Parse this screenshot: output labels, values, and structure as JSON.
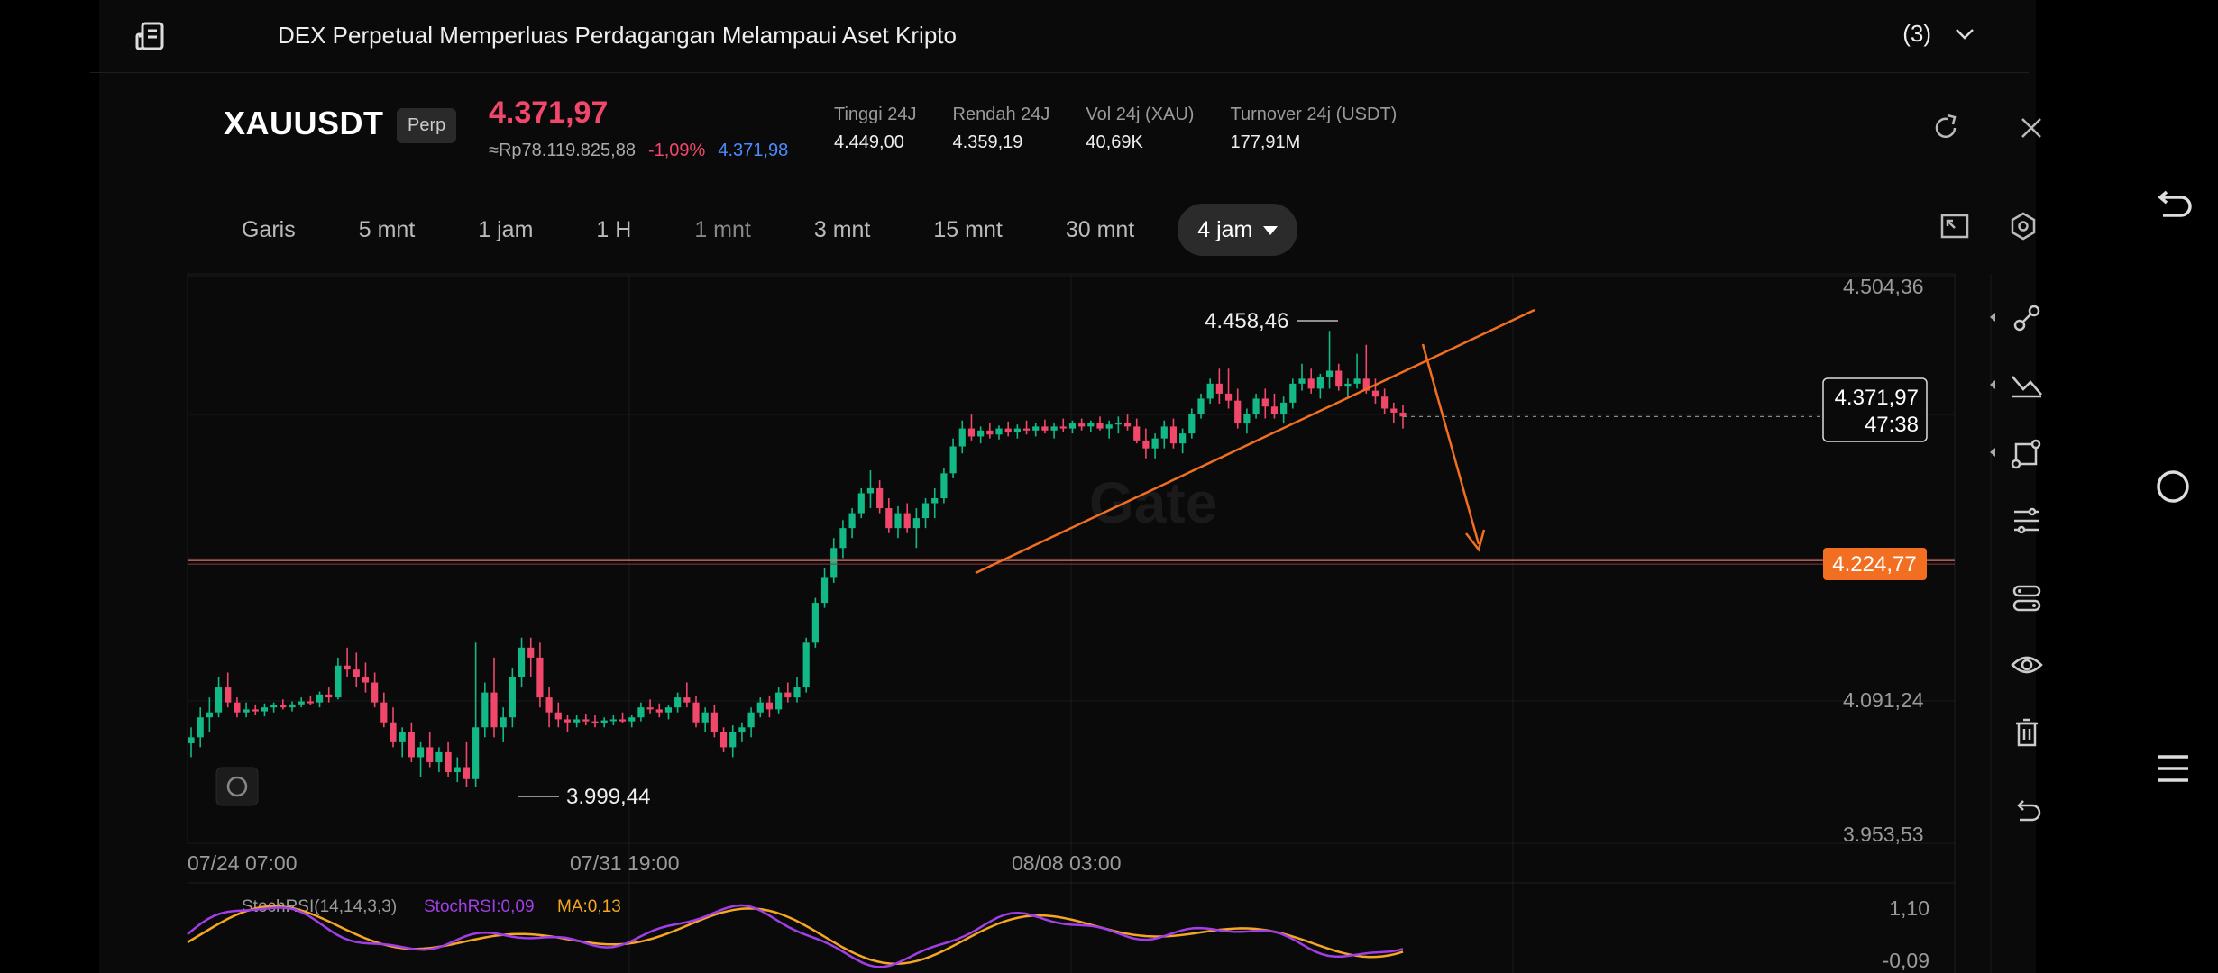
{
  "news": {
    "text": "DEX Perpetual Memperluas Perdagangan Melampaui Aset Kripto",
    "count": "(3)"
  },
  "header": {
    "symbol": "XAUUSDT",
    "badge": "Perp",
    "price": "4.371,97",
    "fiat": "≈Rp78.119.825,88",
    "change": "-1,09%",
    "mark_price": "4.371,98",
    "stats": [
      {
        "label": "Tinggi 24J",
        "value": "4.449,00"
      },
      {
        "label": "Rendah 24J",
        "value": "4.359,19"
      },
      {
        "label": "Vol 24j (XAU)",
        "value": "40,69K"
      },
      {
        "label": "Turnover 24j (USDT)",
        "value": "177,91M"
      }
    ]
  },
  "tabs": [
    "Garis",
    "5 mnt",
    "1 jam",
    "1 H",
    "1 mnt",
    "3 mnt",
    "15 mnt",
    "30 mnt",
    "4 jam"
  ],
  "active_tab": "4 jam",
  "chart_data": {
    "type": "candlestick",
    "y_ticks": [
      "4.504,36",
      "4.091,24",
      "3.953,53"
    ],
    "x_ticks": [
      "07/24 07:00",
      "07/31 19:00",
      "08/08 03:00"
    ],
    "ylim": [
      3953.53,
      4504.36
    ],
    "high_annotation": "4.458,46",
    "low_annotation": "3.999,44",
    "current_price_label": "4.371,97",
    "countdown": "47:38",
    "line_level_label": "4.224,77",
    "line_level": 4224.77,
    "watermark": "Gate",
    "candles": [
      [
        4044,
        4060,
        4030,
        4050
      ],
      [
        4050,
        4080,
        4040,
        4070
      ],
      [
        4070,
        4090,
        4055,
        4075
      ],
      [
        4075,
        4110,
        4070,
        4100
      ],
      [
        4100,
        4115,
        4080,
        4085
      ],
      [
        4085,
        4090,
        4070,
        4075
      ],
      [
        4075,
        4085,
        4070,
        4078
      ],
      [
        4078,
        4083,
        4072,
        4076
      ],
      [
        4076,
        4084,
        4071,
        4080
      ],
      [
        4080,
        4085,
        4075,
        4082
      ],
      [
        4082,
        4088,
        4078,
        4080
      ],
      [
        4080,
        4086,
        4076,
        4083
      ],
      [
        4083,
        4090,
        4080,
        4086
      ],
      [
        4086,
        4092,
        4082,
        4085
      ],
      [
        4085,
        4096,
        4080,
        4093
      ],
      [
        4093,
        4100,
        4085,
        4090
      ],
      [
        4090,
        4130,
        4088,
        4122
      ],
      [
        4122,
        4140,
        4110,
        4118
      ],
      [
        4118,
        4135,
        4100,
        4110
      ],
      [
        4110,
        4125,
        4095,
        4105
      ],
      [
        4105,
        4115,
        4080,
        4085
      ],
      [
        4085,
        4095,
        4060,
        4065
      ],
      [
        4065,
        4080,
        4040,
        4045
      ],
      [
        4045,
        4060,
        4030,
        4055
      ],
      [
        4055,
        4065,
        4025,
        4030
      ],
      [
        4030,
        4045,
        4010,
        4040
      ],
      [
        4040,
        4055,
        4020,
        4025
      ],
      [
        4025,
        4040,
        4015,
        4035
      ],
      [
        4035,
        4045,
        4010,
        4015
      ],
      [
        4015,
        4030,
        4005,
        4020
      ],
      [
        4020,
        4045,
        4000,
        4008
      ],
      [
        4008,
        4145,
        4000,
        4060
      ],
      [
        4060,
        4105,
        4050,
        4095
      ],
      [
        4095,
        4130,
        4050,
        4060
      ],
      [
        4060,
        4080,
        4045,
        4070
      ],
      [
        4070,
        4120,
        4060,
        4110
      ],
      [
        4110,
        4150,
        4100,
        4140
      ],
      [
        4140,
        4150,
        4110,
        4130
      ],
      [
        4130,
        4145,
        4080,
        4090
      ],
      [
        4090,
        4100,
        4060,
        4075
      ],
      [
        4075,
        4085,
        4060,
        4068
      ],
      [
        4068,
        4072,
        4055,
        4065
      ],
      [
        4065,
        4072,
        4060,
        4068
      ],
      [
        4068,
        4073,
        4062,
        4066
      ],
      [
        4066,
        4072,
        4060,
        4064
      ],
      [
        4064,
        4070,
        4060,
        4067
      ],
      [
        4067,
        4072,
        4062,
        4068
      ],
      [
        4068,
        4075,
        4064,
        4066
      ],
      [
        4066,
        4072,
        4060,
        4070
      ],
      [
        4070,
        4085,
        4066,
        4080
      ],
      [
        4080,
        4088,
        4074,
        4078
      ],
      [
        4078,
        4084,
        4070,
        4075
      ],
      [
        4075,
        4082,
        4068,
        4080
      ],
      [
        4080,
        4095,
        4075,
        4090
      ],
      [
        4090,
        4105,
        4080,
        4085
      ],
      [
        4085,
        4092,
        4060,
        4065
      ],
      [
        4065,
        4080,
        4055,
        4075
      ],
      [
        4075,
        4082,
        4050,
        4055
      ],
      [
        4055,
        4060,
        4035,
        4040
      ],
      [
        4040,
        4062,
        4030,
        4055
      ],
      [
        4055,
        4065,
        4045,
        4060
      ],
      [
        4060,
        4080,
        4050,
        4075
      ],
      [
        4075,
        4090,
        4070,
        4085
      ],
      [
        4085,
        4092,
        4070,
        4078
      ],
      [
        4078,
        4100,
        4074,
        4095
      ],
      [
        4095,
        4105,
        4085,
        4090
      ],
      [
        4090,
        4110,
        4085,
        4100
      ],
      [
        4100,
        4150,
        4095,
        4145
      ],
      [
        4145,
        4190,
        4140,
        4185
      ],
      [
        4185,
        4220,
        4180,
        4210
      ],
      [
        4210,
        4250,
        4205,
        4240
      ],
      [
        4240,
        4268,
        4230,
        4260
      ],
      [
        4260,
        4280,
        4250,
        4275
      ],
      [
        4275,
        4300,
        4270,
        4295
      ],
      [
        4295,
        4318,
        4280,
        4300
      ],
      [
        4300,
        4308,
        4275,
        4280
      ],
      [
        4280,
        4290,
        4255,
        4260
      ],
      [
        4260,
        4282,
        4250,
        4275
      ],
      [
        4275,
        4285,
        4255,
        4260
      ],
      [
        4260,
        4280,
        4240,
        4270
      ],
      [
        4270,
        4290,
        4260,
        4285
      ],
      [
        4285,
        4300,
        4270,
        4290
      ],
      [
        4290,
        4320,
        4285,
        4315
      ],
      [
        4315,
        4350,
        4310,
        4342
      ],
      [
        4342,
        4368,
        4335,
        4360
      ],
      [
        4360,
        4374,
        4348,
        4352
      ],
      [
        4352,
        4362,
        4345,
        4358
      ],
      [
        4358,
        4366,
        4350,
        4354
      ],
      [
        4354,
        4363,
        4349,
        4360
      ],
      [
        4360,
        4367,
        4352,
        4356
      ],
      [
        4356,
        4364,
        4350,
        4360
      ],
      [
        4360,
        4368,
        4354,
        4358
      ],
      [
        4358,
        4366,
        4352,
        4362
      ],
      [
        4362,
        4369,
        4355,
        4358
      ],
      [
        4358,
        4365,
        4350,
        4362
      ],
      [
        4362,
        4370,
        4356,
        4360
      ],
      [
        4360,
        4368,
        4355,
        4365
      ],
      [
        4365,
        4370,
        4358,
        4362
      ],
      [
        4362,
        4368,
        4356,
        4366
      ],
      [
        4366,
        4372,
        4358,
        4360
      ],
      [
        4360,
        4368,
        4350,
        4364
      ],
      [
        4364,
        4372,
        4355,
        4366
      ],
      [
        4366,
        4374,
        4358,
        4362
      ],
      [
        4362,
        4370,
        4345,
        4348
      ],
      [
        4348,
        4360,
        4330,
        4340
      ],
      [
        4340,
        4355,
        4330,
        4350
      ],
      [
        4350,
        4368,
        4340,
        4362
      ],
      [
        4362,
        4370,
        4340,
        4345
      ],
      [
        4345,
        4360,
        4335,
        4355
      ],
      [
        4355,
        4380,
        4350,
        4375
      ],
      [
        4375,
        4395,
        4370,
        4390
      ],
      [
        4390,
        4410,
        4385,
        4405
      ],
      [
        4405,
        4420,
        4385,
        4395
      ],
      [
        4395,
        4420,
        4380,
        4388
      ],
      [
        4388,
        4400,
        4360,
        4365
      ],
      [
        4365,
        4380,
        4355,
        4375
      ],
      [
        4375,
        4395,
        4370,
        4390
      ],
      [
        4390,
        4400,
        4370,
        4382
      ],
      [
        4382,
        4395,
        4370,
        4375
      ],
      [
        4375,
        4392,
        4365,
        4386
      ],
      [
        4386,
        4410,
        4380,
        4405
      ],
      [
        4405,
        4425,
        4398,
        4410
      ],
      [
        4410,
        4420,
        4395,
        4400
      ],
      [
        4400,
        4415,
        4390,
        4412
      ],
      [
        4412,
        4458,
        4400,
        4418
      ],
      [
        4418,
        4425,
        4398,
        4402
      ],
      [
        4402,
        4410,
        4390,
        4405
      ],
      [
        4405,
        4435,
        4400,
        4410
      ],
      [
        4410,
        4444,
        4395,
        4398
      ],
      [
        4398,
        4410,
        4385,
        4392
      ],
      [
        4392,
        4400,
        4375,
        4380
      ],
      [
        4380,
        4386,
        4365,
        4376
      ],
      [
        4376,
        4384,
        4360,
        4372
      ]
    ]
  },
  "indicator": {
    "title": "StochRSI(14,14,3,3)",
    "k_label": "StochRSI:0,09",
    "d_label": "MA:0,13",
    "k_color": "#a23ee8",
    "d_color": "#f5a623",
    "y_ticks": [
      "1,10",
      "-0,09"
    ]
  },
  "colors": {
    "up": "#12b886",
    "down": "#f0476a",
    "accent": "#f26f21"
  }
}
